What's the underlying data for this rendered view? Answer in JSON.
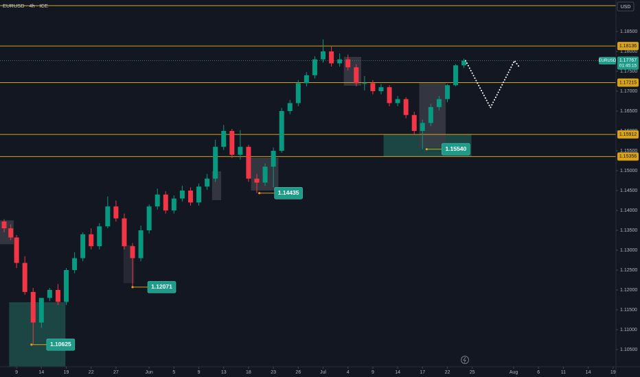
{
  "chart_data": {
    "type": "candlestick",
    "title": "EURUSD · 4h · ICE",
    "currency": "USD",
    "colors": {
      "up": "#089981",
      "down": "#f23645",
      "level": "#d8a31a",
      "badge": "#1f9c89",
      "projection": "#ffffff"
    },
    "xlim": [
      -2,
      72.35
    ],
    "ylim": [
      1.10069,
      1.19293
    ],
    "xticks": [
      {
        "value": 0,
        "label": "9"
      },
      {
        "value": 3,
        "label": "14"
      },
      {
        "value": 6,
        "label": "19"
      },
      {
        "value": 9,
        "label": "22"
      },
      {
        "value": 12,
        "label": "27"
      },
      {
        "value": 16,
        "label": "Jun"
      },
      {
        "value": 19,
        "label": "5"
      },
      {
        "value": 22,
        "label": "9"
      },
      {
        "value": 25,
        "label": "13"
      },
      {
        "value": 28,
        "label": "18"
      },
      {
        "value": 31,
        "label": "23"
      },
      {
        "value": 34,
        "label": "26"
      },
      {
        "value": 37,
        "label": "Jul"
      },
      {
        "value": 40,
        "label": "4"
      },
      {
        "value": 43,
        "label": "9"
      },
      {
        "value": 46,
        "label": "14"
      },
      {
        "value": 49,
        "label": "17"
      },
      {
        "value": 52,
        "label": "22"
      },
      {
        "value": 55,
        "label": "25"
      },
      {
        "value": 60,
        "label": "Aug"
      },
      {
        "value": 63,
        "label": "6"
      },
      {
        "value": 66,
        "label": "11"
      },
      {
        "value": 69,
        "label": "14"
      },
      {
        "value": 72,
        "label": "19"
      }
    ],
    "yticks": [
      {
        "value": 1.105,
        "label": "1.10500"
      },
      {
        "value": 1.11,
        "label": "1.11000"
      },
      {
        "value": 1.115,
        "label": "1.11500"
      },
      {
        "value": 1.12,
        "label": "1.12000"
      },
      {
        "value": 1.125,
        "label": "1.12500"
      },
      {
        "value": 1.13,
        "label": "1.13000"
      },
      {
        "value": 1.135,
        "label": "1.13500"
      },
      {
        "value": 1.14,
        "label": "1.14000"
      },
      {
        "value": 1.145,
        "label": "1.14500"
      },
      {
        "value": 1.15,
        "label": "1.15000"
      },
      {
        "value": 1.155,
        "label": "1.15500"
      },
      {
        "value": 1.16,
        "label": "1.16000"
      },
      {
        "value": 1.165,
        "label": "1.16500"
      },
      {
        "value": 1.17,
        "label": "1.17000"
      },
      {
        "value": 1.175,
        "label": "1.17500"
      },
      {
        "value": 1.18,
        "label": "1.18000"
      },
      {
        "value": 1.185,
        "label": "1.18500"
      }
    ],
    "candles": {
      "x": [
        -1.5,
        -0.7,
        0,
        1,
        2,
        3,
        4,
        5,
        6,
        7,
        8,
        9,
        10,
        11,
        12,
        13,
        14,
        15,
        16,
        17,
        18,
        19,
        20,
        21,
        22,
        23,
        24,
        25,
        26,
        27,
        28,
        29,
        30,
        31,
        32,
        33,
        34,
        35,
        36,
        37,
        38,
        39,
        40,
        41,
        42,
        43,
        44,
        45,
        46,
        47,
        48,
        49,
        50,
        51,
        52,
        53,
        54
      ],
      "open": [
        1.1372,
        1.1355,
        1.1332,
        1.1268,
        1.1195,
        1.1118,
        1.118,
        1.12,
        1.117,
        1.125,
        1.128,
        1.134,
        1.131,
        1.136,
        1.141,
        1.138,
        1.131,
        1.128,
        1.135,
        1.141,
        1.144,
        1.14,
        1.143,
        1.145,
        1.142,
        1.146,
        1.148,
        1.156,
        1.16,
        1.154,
        1.156,
        1.148,
        1.147,
        1.151,
        1.155,
        1.165,
        1.167,
        1.172,
        1.174,
        1.178,
        1.18,
        1.177,
        1.178,
        1.176,
        1.172,
        1.172,
        1.17,
        1.171,
        1.167,
        1.168,
        1.164,
        1.16,
        1.162,
        1.166,
        1.168,
        1.1715,
        1.1765
      ],
      "high": [
        1.1378,
        1.1365,
        1.1338,
        1.1285,
        1.1205,
        1.1135,
        1.1205,
        1.1215,
        1.1255,
        1.1295,
        1.1345,
        1.1355,
        1.1368,
        1.1435,
        1.1425,
        1.1392,
        1.1318,
        1.1362,
        1.1415,
        1.1455,
        1.1448,
        1.1438,
        1.1462,
        1.1458,
        1.1468,
        1.1492,
        1.1578,
        1.1615,
        1.1605,
        1.1602,
        1.1565,
        1.1492,
        1.1518,
        1.1558,
        1.1658,
        1.1678,
        1.1728,
        1.1748,
        1.1788,
        1.183,
        1.1812,
        1.1795,
        1.1792,
        1.1768,
        1.1738,
        1.1728,
        1.1718,
        1.1715,
        1.1688,
        1.1685,
        1.1648,
        1.1628,
        1.1668,
        1.1688,
        1.1718,
        1.1768,
        1.1782
      ],
      "low": [
        1.1345,
        1.1325,
        1.1255,
        1.1188,
        1.10625,
        1.1105,
        1.1172,
        1.1162,
        1.1162,
        1.1242,
        1.1272,
        1.1302,
        1.1302,
        1.1355,
        1.1372,
        1.1302,
        1.12071,
        1.1272,
        1.1342,
        1.1402,
        1.1392,
        1.1392,
        1.1422,
        1.1412,
        1.1412,
        1.1452,
        1.1472,
        1.1552,
        1.1532,
        1.1528,
        1.1472,
        1.14435,
        1.1462,
        1.1458,
        1.1545,
        1.1642,
        1.1662,
        1.1712,
        1.1732,
        1.1772,
        1.1762,
        1.1762,
        1.1752,
        1.1712,
        1.1702,
        1.1692,
        1.1692,
        1.1662,
        1.1662,
        1.1632,
        1.1592,
        1.1554,
        1.1612,
        1.1652,
        1.1672,
        1.1712,
        1.1758
      ],
      "close": [
        1.1355,
        1.1332,
        1.1268,
        1.1195,
        1.1118,
        1.118,
        1.12,
        1.117,
        1.125,
        1.128,
        1.134,
        1.131,
        1.136,
        1.141,
        1.138,
        1.131,
        1.128,
        1.135,
        1.141,
        1.144,
        1.14,
        1.143,
        1.145,
        1.142,
        1.146,
        1.148,
        1.156,
        1.16,
        1.154,
        1.156,
        1.148,
        1.147,
        1.151,
        1.155,
        1.165,
        1.167,
        1.172,
        1.174,
        1.178,
        1.18,
        1.177,
        1.178,
        1.176,
        1.172,
        1.172,
        1.17,
        1.171,
        1.167,
        1.168,
        1.164,
        1.16,
        1.162,
        1.166,
        1.168,
        1.1715,
        1.1765,
        1.17767
      ]
    },
    "levels": [
      {
        "value": 1.1915
      },
      {
        "value": 1.18136,
        "label": "1.18136"
      },
      {
        "value": 1.17215,
        "label": "1.17215"
      },
      {
        "value": 1.15912,
        "label": "1.15912"
      },
      {
        "value": 1.15356,
        "label": "1.15356"
      }
    ],
    "current": {
      "symbol": "EURUSD",
      "price": 1.17767,
      "countdown": "01:45:15"
    },
    "annotations": [
      {
        "x": 1.8,
        "value": 1.10625,
        "label": "1.10625"
      },
      {
        "x": 14.0,
        "value": 1.12071,
        "label": "1.12071"
      },
      {
        "x": 29.3,
        "value": 1.14435,
        "label": "1.14435"
      },
      {
        "x": 49.5,
        "value": 1.1554,
        "label": "1.15540"
      }
    ],
    "zones": [
      {
        "x": [
          -0.9,
          5.9
        ],
        "y": [
          1.1008,
          1.1169
        ],
        "color": "#1d4f4a"
      },
      {
        "x": [
          44.3,
          54.9
        ],
        "y": [
          1.15356,
          1.15912
        ],
        "color": "#1d4f4a"
      },
      {
        "x": [
          48.6,
          51.8
        ],
        "y": [
          1.15586,
          1.17207
        ],
        "color": "#3a3c45"
      },
      {
        "x": [
          39.5,
          41.6
        ],
        "y": [
          1.17138,
          1.17862
        ],
        "color": "#3a3c45"
      },
      {
        "x": [
          28.3,
          31.6
        ],
        "y": [
          1.145,
          1.15328
        ],
        "color": "#3a3c45"
      },
      {
        "x": [
          23.6,
          24.7
        ],
        "y": [
          1.14259,
          1.14983
        ],
        "color": "#3a3c45"
      },
      {
        "x": [
          -2.0,
          -0.35
        ],
        "y": [
          1.1315,
          1.1375
        ],
        "color": "#3a3c45"
      },
      {
        "x": [
          12.9,
          14.2
        ],
        "y": [
          1.1217,
          1.1312
        ],
        "color": "#2a2d36"
      }
    ],
    "projection": {
      "x": [
        54.2,
        57.2,
        60.1,
        60.7
      ],
      "y": [
        1.17767,
        1.16586,
        1.17767,
        1.17603
      ]
    }
  }
}
